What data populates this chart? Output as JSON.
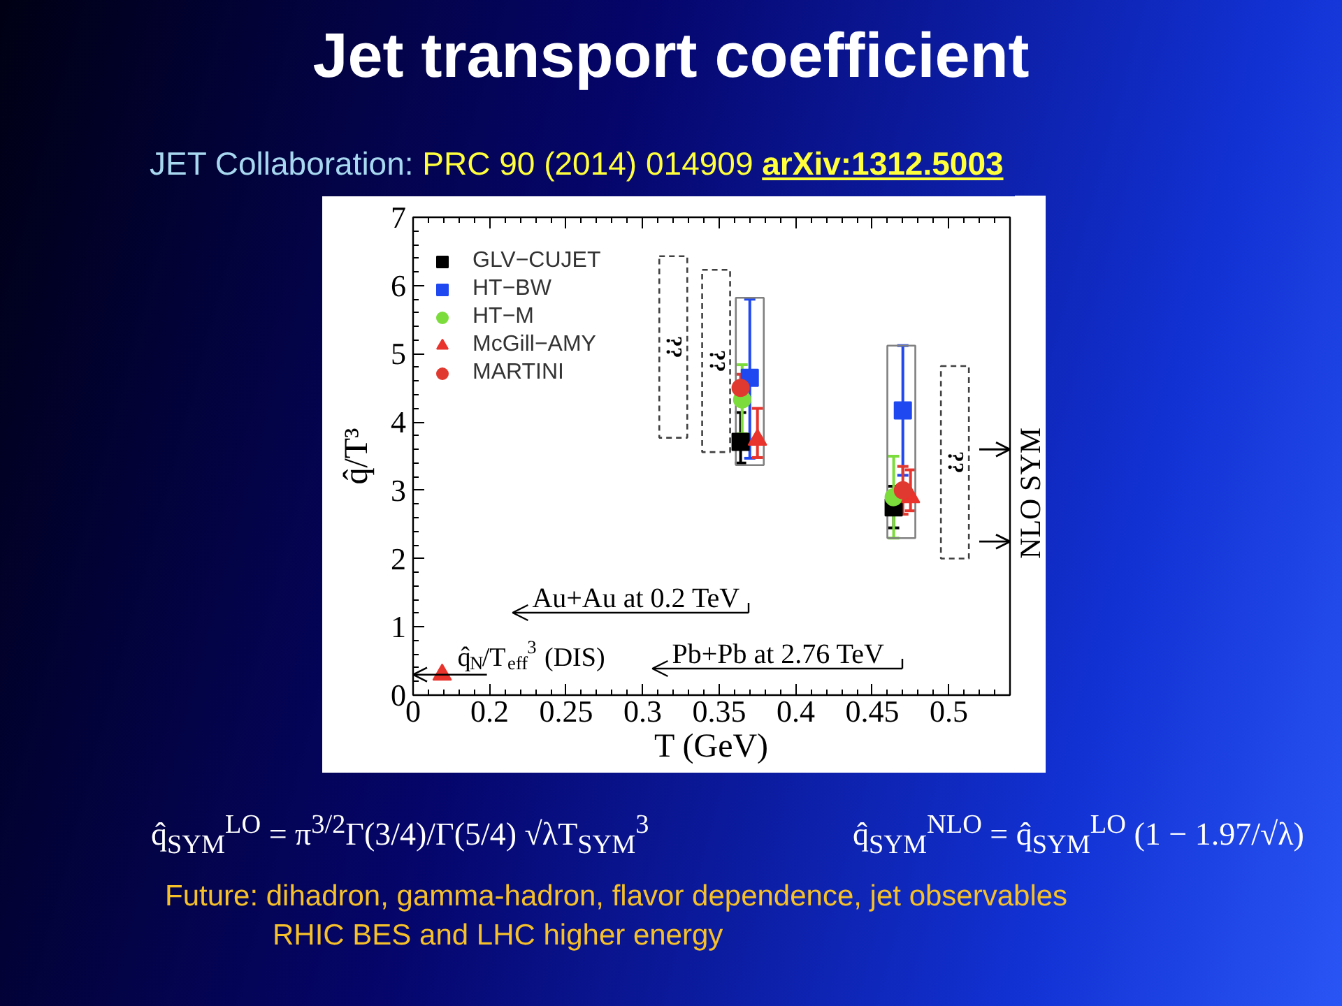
{
  "chart_data": {
    "type": "scatter",
    "title": "Jet transport coefficient",
    "subtitle": "JET Collaboration: PRC 90 (2014) 014909 arXiv:1312.5003",
    "xlabel": "T (GeV)",
    "ylabel": "q̂/T³",
    "xlim": [
      0.15,
      0.54
    ],
    "xticks": [
      {
        "value": 0.15,
        "label": "0"
      },
      0.2,
      0.25,
      0.3,
      0.35,
      0.4,
      0.45,
      0.5
    ],
    "ylim": [
      0,
      7
    ],
    "yticks": [
      0,
      1,
      2,
      3,
      4,
      5,
      6,
      7
    ],
    "legend": "top left",
    "ref_lines": [
      {
        "axis": "y",
        "value": 3.6,
        "label": "SYM"
      },
      {
        "axis": "y",
        "value": 2.25,
        "label": "NLO"
      }
    ],
    "series": [
      {
        "type": "bar",
        "color": "#808080",
        "x": [
          0.37,
          0.469
        ],
        "base": [
          3.37,
          2.3
        ],
        "values": [
          2.45,
          2.82
        ]
      },
      {
        "type": "bar",
        "color": "#404040",
        "line_style": "dashed",
        "x": [
          0.32,
          0.348,
          0.504
        ],
        "base": [
          3.77,
          3.56,
          2.0
        ],
        "values": [
          2.66,
          2.67,
          2.82
        ],
        "value_labels": [
          "??",
          "??",
          "??"
        ]
      },
      {
        "name": "GLV−CUJET",
        "marker": "square",
        "color": "#000000",
        "x": [
          0.364,
          0.464
        ],
        "values": [
          3.71,
          2.75
        ],
        "errors": [
          [
            3.4,
            4.14
          ],
          [
            2.45,
            3.06
          ]
        ]
      },
      {
        "name": "HT−BW",
        "marker": "square",
        "color": "#1f48f0",
        "x": [
          0.37,
          0.47
        ],
        "values": [
          4.65,
          4.17
        ],
        "errors": [
          [
            3.47,
            5.8
          ],
          [
            3.22,
            5.12
          ]
        ]
      },
      {
        "name": "HT−M",
        "marker": "circle",
        "color": "#7cdc3c",
        "x": [
          0.365,
          0.464
        ],
        "values": [
          4.33,
          2.9
        ],
        "errors": [
          [
            3.83,
            4.84
          ],
          [
            2.3,
            3.5
          ]
        ]
      },
      {
        "name": "McGill−AMY",
        "marker": "triangle",
        "color": "#e8342c",
        "x": [
          0.375,
          0.475
        ],
        "values": [
          3.74,
          2.9
        ],
        "errors": [
          [
            3.48,
            4.2
          ],
          [
            2.7,
            3.3
          ]
        ]
      },
      {
        "name": "MARTINI",
        "marker": "circle",
        "color": "#e03a30",
        "x": [
          0.364,
          0.47
        ],
        "values": [
          4.5,
          3.0
        ],
        "errors": [
          0.2,
          0.35
        ]
      },
      {
        "marker": "triangle",
        "color": "#e8342c",
        "x": [
          0.169
        ],
        "values": [
          0.3
        ]
      }
    ],
    "annotations": [
      "Au+Au at 0.2 TeV",
      {
        "text": "q̂$_{N}$/T$_{eff}$$^{3}$ (DIS)",
        "x": 0.169,
        "y": 0.3
      },
      "Pb+Pb at 2.76 TeV",
      "q̂$_{SYM}$$^{LO}$ = π$^{3/2}$Γ(3/4)/Γ(5/4) √λT$_{SYM}$$^{3}$",
      "q̂$_{SYM}$$^{NLO}$ = q̂$_{SYM}$$^{LO}$ (1 − 1.97/√λ)",
      "Future: dihadron, gamma-hadron, flavor dependence, jet observables",
      "RHIC BES and LHC higher energy"
    ]
  }
}
